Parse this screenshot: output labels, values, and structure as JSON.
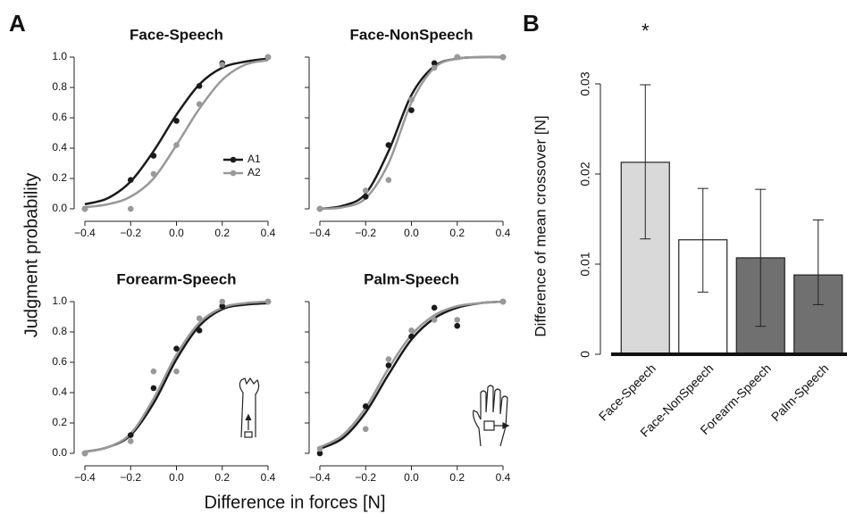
{
  "figure": {
    "panel_labels": [
      "A",
      "B"
    ],
    "xlabel": "Difference in forces [N]",
    "ylabel": "Judgment probability"
  },
  "chart_data": [
    {
      "type": "scatter",
      "title": "Face-Speech",
      "legend": "center-right",
      "show_ytick_labels": true,
      "xlim": [
        -0.4,
        0.4
      ],
      "ylim": [
        0,
        1
      ],
      "xticks": [
        {
          "value": -0.4,
          "label": "−0.4"
        },
        {
          "value": -0.2,
          "label": "−0.2"
        },
        {
          "value": 0,
          "label": "0.0"
        },
        0.2,
        0.4
      ],
      "yticks": [
        {
          "value": 0,
          "label": "0.0"
        },
        0.2,
        0.4,
        0.6,
        0.8,
        {
          "value": 1,
          "label": "1.0"
        }
      ],
      "fit_x": [
        -0.4,
        -0.3,
        -0.2,
        -0.1,
        0,
        0.1,
        0.2,
        0.3,
        0.4
      ],
      "series": [
        {
          "name": "A1",
          "color": "#1a1a1a",
          "x": [
            -0.4,
            -0.2,
            -0.1,
            0,
            0.1,
            0.2,
            0.4
          ],
          "values": [
            0,
            0.19,
            0.35,
            0.58,
            0.81,
            0.96,
            1
          ],
          "fit": [
            0.03,
            0.07,
            0.18,
            0.38,
            0.62,
            0.82,
            0.93,
            0.97,
            0.99
          ]
        },
        {
          "name": "A2",
          "color": "#999999",
          "x": [
            -0.4,
            -0.2,
            -0.1,
            0,
            0.1,
            0.2,
            0.4
          ],
          "values": [
            0,
            0,
            0.23,
            0.42,
            0.69,
            0.95,
            1
          ],
          "fit": [
            0.01,
            0.03,
            0.08,
            0.2,
            0.42,
            0.66,
            0.85,
            0.95,
            0.98
          ]
        }
      ]
    },
    {
      "type": "scatter",
      "title": "Face-NonSpeech",
      "show_ytick_labels": false,
      "xlim": [
        -0.4,
        0.4
      ],
      "ylim": [
        0,
        1
      ],
      "xticks": [
        {
          "value": -0.4,
          "label": "−0.4"
        },
        {
          "value": -0.2,
          "label": "−0.2"
        },
        {
          "value": 0,
          "label": "0.0"
        },
        0.2,
        0.4
      ],
      "yticks": [
        {
          "value": 0,
          "label": "0.0"
        },
        0.2,
        0.4,
        0.6,
        0.8,
        {
          "value": 1,
          "label": "1.0"
        }
      ],
      "fit_x": [
        -0.4,
        -0.3,
        -0.2,
        -0.1,
        0,
        0.1,
        0.2,
        0.3,
        0.4
      ],
      "series": [
        {
          "name": "A1",
          "color": "#1a1a1a",
          "x": [
            -0.4,
            -0.2,
            -0.1,
            0,
            0.1,
            0.2,
            0.4
          ],
          "values": [
            0,
            0.08,
            0.42,
            0.65,
            0.96,
            1,
            1
          ],
          "fit": [
            0,
            0.02,
            0.1,
            0.38,
            0.75,
            0.94,
            0.99,
            1,
            1
          ]
        },
        {
          "name": "A2",
          "color": "#999999",
          "x": [
            -0.4,
            -0.2,
            -0.1,
            0,
            0.1,
            0.2,
            0.4
          ],
          "values": [
            0,
            0.12,
            0.19,
            0.72,
            0.93,
            1,
            1
          ],
          "fit": [
            0,
            0.01,
            0.07,
            0.3,
            0.7,
            0.93,
            0.99,
            1,
            1
          ]
        }
      ]
    },
    {
      "type": "scatter",
      "title": "Forearm-Speech",
      "show_ytick_labels": true,
      "xlim": [
        -0.4,
        0.4
      ],
      "ylim": [
        0,
        1
      ],
      "xticks": [
        {
          "value": -0.4,
          "label": "−0.4"
        },
        {
          "value": -0.2,
          "label": "−0.2"
        },
        {
          "value": 0,
          "label": "0.0"
        },
        0.2,
        0.4
      ],
      "yticks": [
        {
          "value": 0,
          "label": "0.0"
        },
        0.2,
        0.4,
        0.6,
        0.8,
        {
          "value": 1,
          "label": "1.0"
        }
      ],
      "fit_x": [
        -0.4,
        -0.3,
        -0.2,
        -0.1,
        0,
        0.1,
        0.2,
        0.3,
        0.4
      ],
      "series": [
        {
          "name": "A1",
          "color": "#1a1a1a",
          "x": [
            -0.4,
            -0.2,
            -0.1,
            0,
            0.1,
            0.2,
            0.4
          ],
          "values": [
            0,
            0.12,
            0.43,
            0.69,
            0.81,
            0.97,
            1
          ],
          "fit": [
            0.01,
            0.04,
            0.12,
            0.33,
            0.62,
            0.84,
            0.95,
            0.98,
            0.99
          ]
        },
        {
          "name": "A2",
          "color": "#999999",
          "x": [
            -0.4,
            -0.2,
            -0.1,
            0,
            0.1,
            0.2,
            0.4
          ],
          "values": [
            0,
            0.08,
            0.54,
            0.54,
            0.89,
            1,
            1
          ],
          "fit": [
            0.01,
            0.04,
            0.13,
            0.36,
            0.65,
            0.86,
            0.96,
            0.99,
            1
          ]
        }
      ]
    },
    {
      "type": "scatter",
      "title": "Palm-Speech",
      "show_ytick_labels": false,
      "xlim": [
        -0.4,
        0.4
      ],
      "ylim": [
        0,
        1
      ],
      "xticks": [
        {
          "value": -0.4,
          "label": "−0.4"
        },
        {
          "value": -0.2,
          "label": "−0.2"
        },
        {
          "value": 0,
          "label": "0.0"
        },
        0.2,
        0.4
      ],
      "yticks": [
        {
          "value": 0,
          "label": "0.0"
        },
        0.2,
        0.4,
        0.6,
        0.8,
        {
          "value": 1,
          "label": "1.0"
        }
      ],
      "fit_x": [
        -0.4,
        -0.3,
        -0.2,
        -0.1,
        0,
        0.1,
        0.2,
        0.3,
        0.4
      ],
      "series": [
        {
          "name": "A1",
          "color": "#1a1a1a",
          "x": [
            -0.4,
            -0.2,
            -0.1,
            0,
            0.1,
            0.2,
            0.4
          ],
          "values": [
            0,
            0.31,
            0.58,
            0.77,
            0.96,
            0.84,
            1
          ],
          "fit": [
            0.03,
            0.1,
            0.27,
            0.52,
            0.75,
            0.89,
            0.96,
            0.99,
            1
          ]
        },
        {
          "name": "A2",
          "color": "#999999",
          "x": [
            -0.4,
            -0.2,
            -0.1,
            0,
            0.1,
            0.2,
            0.4
          ],
          "values": [
            0.03,
            0.16,
            0.62,
            0.81,
            0.88,
            0.88,
            1
          ],
          "fit": [
            0.04,
            0.12,
            0.3,
            0.56,
            0.78,
            0.91,
            0.97,
            0.99,
            1
          ]
        }
      ]
    },
    {
      "type": "bar",
      "ylabel": "Difference of mean crossover [N]",
      "annotation": "*",
      "categories": [
        "Face-Speech",
        "Face-NonSpeech",
        "Forearm-Speech",
        "Palm-Speech"
      ],
      "values": [
        0.0213,
        0.0127,
        0.0107,
        0.0088
      ],
      "lower": [
        0.0128,
        0.0069,
        0.0031,
        0.0055
      ],
      "upper": [
        0.0299,
        0.0184,
        0.0183,
        0.0149
      ],
      "colors": [
        "#d9d9d9",
        "#ffffff",
        "#707070",
        "#707070"
      ],
      "ylim": [
        0,
        0.03
      ],
      "yticks": [
        0,
        0.01,
        0.02,
        0.03
      ]
    }
  ]
}
